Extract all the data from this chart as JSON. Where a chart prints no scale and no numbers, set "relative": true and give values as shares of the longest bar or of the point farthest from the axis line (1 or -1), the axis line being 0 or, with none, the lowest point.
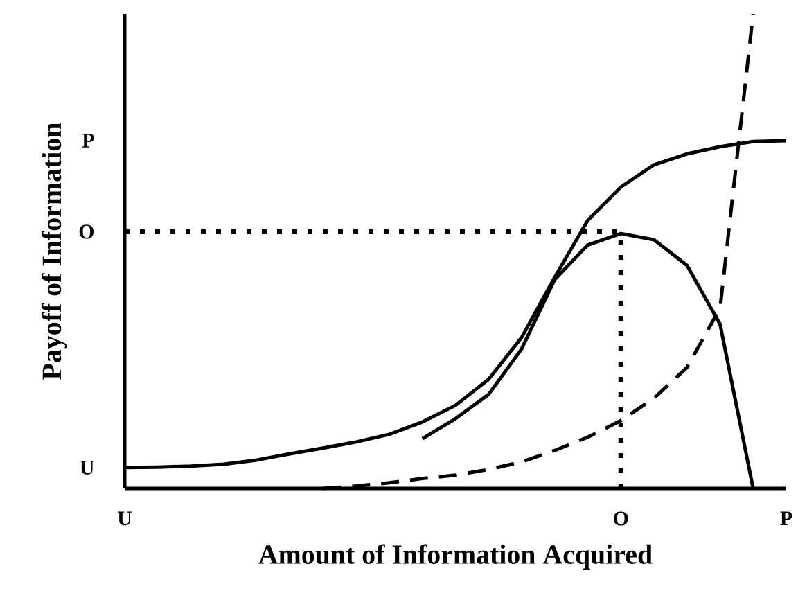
{
  "chart_data": {
    "type": "line",
    "relative": true,
    "xlabel": "Amount of Information Acquired",
    "ylabel": "Payoff of Information",
    "categories": [
      "U",
      null,
      null,
      null,
      null,
      null,
      null,
      null,
      null,
      null,
      null,
      null,
      null,
      null,
      null,
      "O",
      null,
      null,
      null,
      null,
      "P"
    ],
    "annotations": [
      "U",
      "P"
    ],
    "ref_lines": [
      {
        "axis": "x",
        "value": "O",
        "line_style": "dotted",
        "color": "#000000"
      },
      {
        "axis": "y",
        "value": 0.541,
        "label": "O",
        "line_style": "dotted",
        "color": "#000000"
      }
    ],
    "marker": "none",
    "series": [
      {
        "color": "#000000",
        "line_style": "solid",
        "values": [
          0.044,
          0.045,
          0.047,
          0.051,
          0.06,
          0.073,
          0.085,
          0.098,
          0.114,
          0.14,
          0.175,
          0.23,
          0.318,
          0.445,
          0.565,
          0.635,
          0.682,
          0.705,
          0.72,
          0.731,
          0.733
        ]
      },
      {
        "color": "#000000",
        "line_style": "solid",
        "values": [
          null,
          null,
          null,
          null,
          null,
          null,
          null,
          null,
          null,
          0.105,
          0.147,
          0.198,
          0.294,
          0.44,
          0.513,
          0.537,
          0.524,
          0.47,
          0.346,
          0,
          null
        ]
      },
      {
        "color": "#000000",
        "line_style": "dashed",
        "values": [
          null,
          null,
          null,
          null,
          null,
          null,
          0,
          0.005,
          0.012,
          0.021,
          0.028,
          0.04,
          0.056,
          0.08,
          0.108,
          0.143,
          0.19,
          0.255,
          0.38,
          1,
          null
        ]
      }
    ]
  }
}
